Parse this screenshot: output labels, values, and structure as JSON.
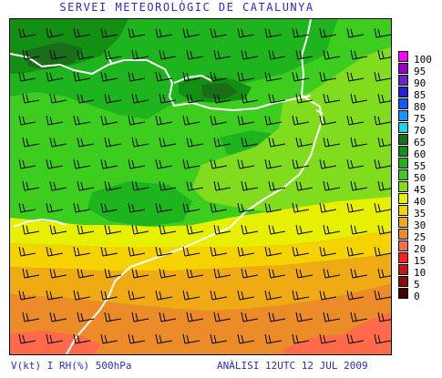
{
  "header": {
    "title": "SERVEI METEOROLÒGIC DE CATALUNYA"
  },
  "footer": {
    "left": "V(kt) I RH(%) 500hPa",
    "right": "ANÀLISI 12UTC 12 JUL 2009"
  },
  "legend": {
    "levels": [
      {
        "label": "100",
        "color": "#ff00ff"
      },
      {
        "label": "95",
        "color": "#9a00c8"
      },
      {
        "label": "90",
        "color": "#6a22cc"
      },
      {
        "label": "85",
        "color": "#2222d8"
      },
      {
        "label": "80",
        "color": "#0a5cff"
      },
      {
        "label": "75",
        "color": "#1496ff"
      },
      {
        "label": "70",
        "color": "#14d8e8"
      },
      {
        "label": "65",
        "color": "#1a6e1a"
      },
      {
        "label": "60",
        "color": "#138f13"
      },
      {
        "label": "55",
        "color": "#1eb41e"
      },
      {
        "label": "50",
        "color": "#3ccd1e"
      },
      {
        "label": "45",
        "color": "#82dc1e"
      },
      {
        "label": "40",
        "color": "#e6f000"
      },
      {
        "label": "35",
        "color": "#f5d200"
      },
      {
        "label": "30",
        "color": "#f0aa14"
      },
      {
        "label": "25",
        "color": "#eb8c28"
      },
      {
        "label": "20",
        "color": "#ff6a4a"
      },
      {
        "label": "15",
        "color": "#ff1e1e"
      },
      {
        "label": "10",
        "color": "#c81414"
      },
      {
        "label": "5",
        "color": "#8c0a0a"
      },
      {
        "label": "0",
        "color": "#460000"
      }
    ]
  },
  "map": {
    "background_color": "#3ccd1e",
    "coastline_color": "#ffffff",
    "wind_barb_color": "#000000",
    "wind_barb_icon": "wind-barb-icon"
  }
}
